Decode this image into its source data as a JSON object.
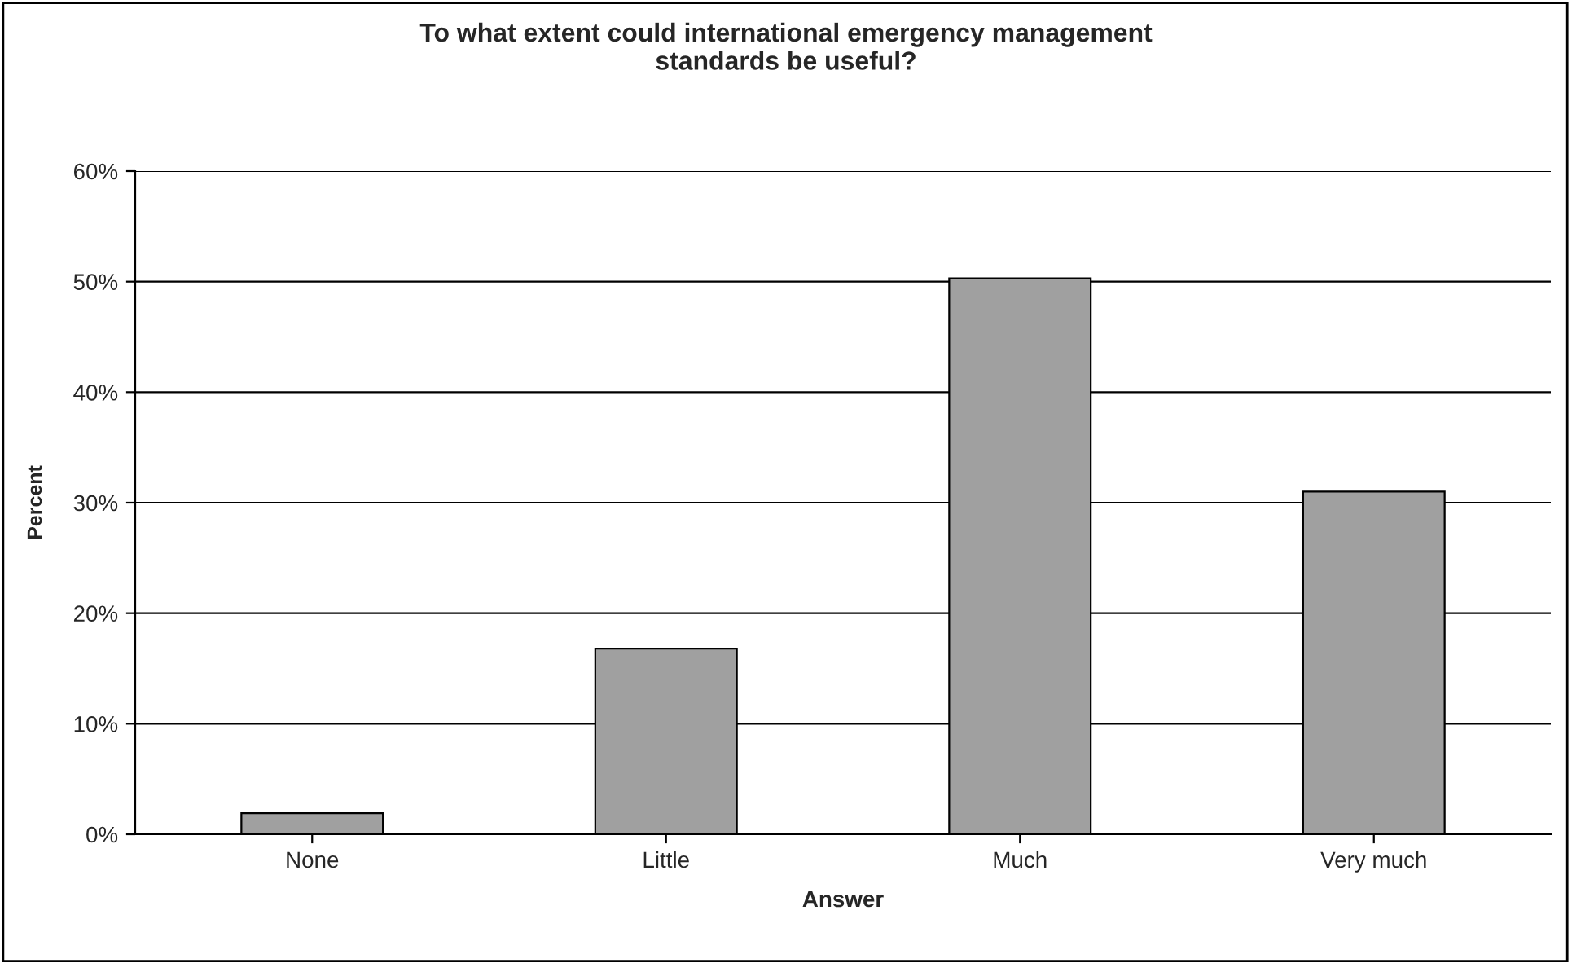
{
  "chart_data": {
    "type": "bar",
    "title": "To what extent could international emergency management\nstandards be useful?",
    "xlabel": "Answer",
    "ylabel": "Percent",
    "categories": [
      "None",
      "Little",
      "Much",
      "Very much"
    ],
    "values": [
      1.9,
      16.8,
      50.3,
      31.0
    ],
    "color": "#a0a0a0",
    "ylim": [
      0,
      60
    ],
    "yticks": [
      {
        "value": 0,
        "label": "0%"
      },
      {
        "value": 10,
        "label": "10%"
      },
      {
        "value": 20,
        "label": "20%"
      },
      {
        "value": 30,
        "label": "30%"
      },
      {
        "value": 40,
        "label": "40%"
      },
      {
        "value": 50,
        "label": "50%"
      },
      {
        "value": 60,
        "label": "60%"
      }
    ],
    "grid": "y",
    "legend": false
  }
}
